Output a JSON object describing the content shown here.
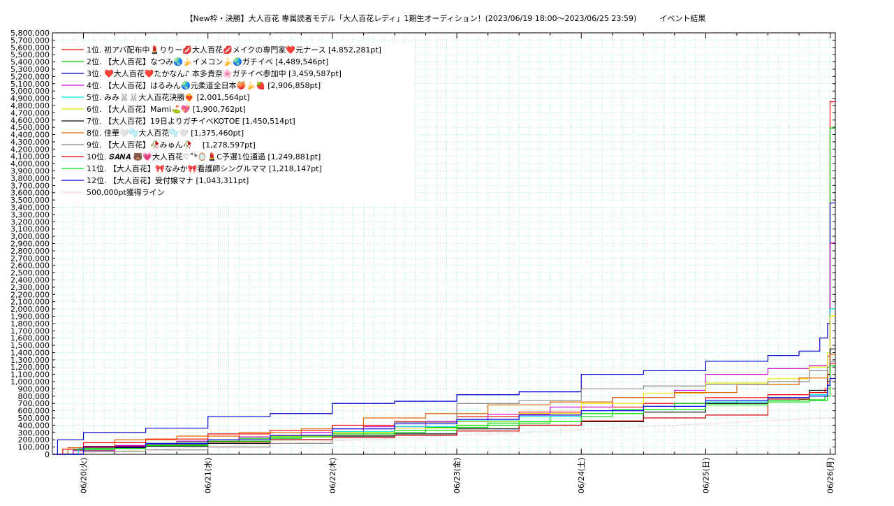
{
  "chart_data": {
    "type": "line",
    "title": "【New枠・決勝】大人百花 専属読者モデル「大人百花レディ」1期生オーディション！(2023/06/19 18:00〜2023/06/25 23:59)　　　イベント結果",
    "xlabel": "",
    "ylabel": "",
    "x_ticks": [
      "06/20(火)",
      "06/21(水)",
      "06/22(木)",
      "06/23(金)",
      "06/24(土)",
      "06/25(日)",
      "06/26(月)"
    ],
    "y_ticks": [
      "0",
      "100,000",
      "200,000",
      "300,000",
      "400,000",
      "500,000",
      "600,000",
      "700,000",
      "800,000",
      "900,000",
      "1,000,000",
      "1,100,000",
      "1,200,000",
      "1,300,000",
      "1,400,000",
      "1,500,000",
      "1,600,000",
      "1,700,000",
      "1,800,000",
      "1,900,000",
      "2,000,000",
      "2,100,000",
      "2,200,000",
      "2,300,000",
      "2,400,000",
      "2,500,000",
      "2,600,000",
      "2,700,000",
      "2,800,000",
      "2,900,000",
      "3,000,000",
      "3,100,000",
      "3,200,000",
      "3,300,000",
      "3,400,000",
      "3,500,000",
      "3,600,000",
      "3,700,000",
      "3,800,000",
      "3,900,000",
      "4,000,000",
      "4,100,000",
      "4,200,000",
      "4,300,000",
      "4,400,000",
      "4,500,000",
      "4,600,000",
      "4,700,000",
      "4,800,000",
      "4,900,000",
      "5,000,000",
      "5,100,000",
      "5,200,000",
      "5,300,000",
      "5,400,000",
      "5,500,000",
      "5,600,000",
      "5,700,000",
      "5,800,000"
    ],
    "x_range": [
      "2023/06/19 18:00",
      "2023/06/26 01:00"
    ],
    "ylim": [
      0,
      5800000
    ],
    "grid": true,
    "legend_position": "top-left",
    "series": [
      {
        "name": " 1位. 初アバ配布中💄りりー💋大人百花💋メイクの専門家❤️元ナース [4,852,281pt]",
        "color": "#ff0000",
        "points": [
          [
            "2023/06/19 18:00",
            0
          ],
          [
            "2023/06/19 20:00",
            70000
          ],
          [
            "2023/06/20 00:00",
            160000
          ],
          [
            "2023/06/20 12:00",
            210000
          ],
          [
            "2023/06/21 00:00",
            280000
          ],
          [
            "2023/06/21 12:00",
            330000
          ],
          [
            "2023/06/22 00:00",
            400000
          ],
          [
            "2023/06/22 12:00",
            450000
          ],
          [
            "2023/06/23 00:00",
            520000
          ],
          [
            "2023/06/23 12:00",
            580000
          ],
          [
            "2023/06/24 00:00",
            650000
          ],
          [
            "2023/06/24 12:00",
            700000
          ],
          [
            "2023/06/25 00:00",
            780000
          ],
          [
            "2023/06/25 12:00",
            820000
          ],
          [
            "2023/06/25 20:00",
            850000
          ],
          [
            "2023/06/25 23:00",
            900000
          ],
          [
            "2023/06/25 23:59",
            4852281
          ],
          [
            "2023/06/26 01:00",
            4852281
          ]
        ]
      },
      {
        "name": " 2位. 【大人百花】なつみ🌏🍌イメコン🍌🌏ガチイベ [4,489,546pt]",
        "color": "#00cc00",
        "points": [
          [
            "2023/06/19 18:00",
            0
          ],
          [
            "2023/06/19 22:00",
            60000
          ],
          [
            "2023/06/20 06:00",
            120000
          ],
          [
            "2023/06/20 18:00",
            170000
          ],
          [
            "2023/06/21 06:00",
            220000
          ],
          [
            "2023/06/21 18:00",
            260000
          ],
          [
            "2023/06/22 06:00",
            300000
          ],
          [
            "2023/06/22 18:00",
            370000
          ],
          [
            "2023/06/23 06:00",
            430000
          ],
          [
            "2023/06/23 18:00",
            520000
          ],
          [
            "2023/06/24 06:00",
            620000
          ],
          [
            "2023/06/24 18:00",
            700000
          ],
          [
            "2023/06/25 06:00",
            740000
          ],
          [
            "2023/06/25 18:00",
            750000
          ],
          [
            "2023/06/25 23:00",
            800000
          ],
          [
            "2023/06/25 23:59",
            4489546
          ],
          [
            "2023/06/26 01:00",
            4489546
          ]
        ]
      },
      {
        "name": " 3位. ❤️大人百花❤️たかなん♪ 本多貴奈🌸ガチイベ参加中 [3,459,587pt]",
        "color": "#0000cc",
        "points": [
          [
            "2023/06/19 18:00",
            0
          ],
          [
            "2023/06/19 19:00",
            200000
          ],
          [
            "2023/06/20 00:00",
            300000
          ],
          [
            "2023/06/20 12:00",
            360000
          ],
          [
            "2023/06/21 00:00",
            520000
          ],
          [
            "2023/06/21 12:00",
            560000
          ],
          [
            "2023/06/22 00:00",
            700000
          ],
          [
            "2023/06/22 12:00",
            730000
          ],
          [
            "2023/06/23 00:00",
            820000
          ],
          [
            "2023/06/23 12:00",
            860000
          ],
          [
            "2023/06/24 00:00",
            1100000
          ],
          [
            "2023/06/24 12:00",
            1150000
          ],
          [
            "2023/06/25 00:00",
            1280000
          ],
          [
            "2023/06/25 12:00",
            1360000
          ],
          [
            "2023/06/25 18:00",
            1420000
          ],
          [
            "2023/06/25 22:00",
            1600000
          ],
          [
            "2023/06/25 23:30",
            1800000
          ],
          [
            "2023/06/25 23:59",
            3459587
          ],
          [
            "2023/06/26 01:00",
            3459587
          ]
        ]
      },
      {
        "name": " 4位. 【大人百花】はるみん🌏元柔道全日本🍑🍌🍓 [2,906,858pt]",
        "color": "#cc00cc",
        "points": [
          [
            "2023/06/19 18:00",
            0
          ],
          [
            "2023/06/19 22:00",
            50000
          ],
          [
            "2023/06/20 06:00",
            120000
          ],
          [
            "2023/06/20 18:00",
            180000
          ],
          [
            "2023/06/21 06:00",
            240000
          ],
          [
            "2023/06/21 18:00",
            300000
          ],
          [
            "2023/06/22 06:00",
            380000
          ],
          [
            "2023/06/22 18:00",
            450000
          ],
          [
            "2023/06/23 06:00",
            550000
          ],
          [
            "2023/06/23 18:00",
            650000
          ],
          [
            "2023/06/24 06:00",
            780000
          ],
          [
            "2023/06/24 18:00",
            880000
          ],
          [
            "2023/06/25 00:00",
            1100000
          ],
          [
            "2023/06/25 12:00",
            1180000
          ],
          [
            "2023/06/25 20:00",
            1220000
          ],
          [
            "2023/06/25 23:30",
            1350000
          ],
          [
            "2023/06/25 23:59",
            2906858
          ],
          [
            "2023/06/26 01:00",
            2906858
          ]
        ]
      },
      {
        "name": " 5位. みみ🐰🐰大人百花決勝❤️‍🔥 [2,001,564pt]",
        "color": "#00e0e0",
        "points": [
          [
            "2023/06/19 18:00",
            0
          ],
          [
            "2023/06/19 23:00",
            80000
          ],
          [
            "2023/06/20 12:00",
            140000
          ],
          [
            "2023/06/21 00:00",
            200000
          ],
          [
            "2023/06/21 12:00",
            250000
          ],
          [
            "2023/06/22 00:00",
            310000
          ],
          [
            "2023/06/22 12:00",
            380000
          ],
          [
            "2023/06/23 00:00",
            460000
          ],
          [
            "2023/06/23 12:00",
            520000
          ],
          [
            "2023/06/24 00:00",
            600000
          ],
          [
            "2023/06/24 12:00",
            660000
          ],
          [
            "2023/06/25 00:00",
            720000
          ],
          [
            "2023/06/25 12:00",
            780000
          ],
          [
            "2023/06/25 20:00",
            820000
          ],
          [
            "2023/06/25 23:30",
            1200000
          ],
          [
            "2023/06/25 23:59",
            2001564
          ],
          [
            "2023/06/26 01:00",
            2001564
          ]
        ]
      },
      {
        "name": " 6位. 【大人百花】Mami⛳💖 [1,900,762pt]",
        "color": "#e6e600",
        "points": [
          [
            "2023/06/19 18:00",
            0
          ],
          [
            "2023/06/20 00:00",
            90000
          ],
          [
            "2023/06/20 12:00",
            150000
          ],
          [
            "2023/06/21 00:00",
            200000
          ],
          [
            "2023/06/21 12:00",
            250000
          ],
          [
            "2023/06/22 00:00",
            300000
          ],
          [
            "2023/06/22 12:00",
            360000
          ],
          [
            "2023/06/23 00:00",
            450000
          ],
          [
            "2023/06/23 12:00",
            560000
          ],
          [
            "2023/06/24 00:00",
            700000
          ],
          [
            "2023/06/24 12:00",
            840000
          ],
          [
            "2023/06/25 00:00",
            980000
          ],
          [
            "2023/06/25 12:00",
            1040000
          ],
          [
            "2023/06/25 20:00",
            1200000
          ],
          [
            "2023/06/25 23:30",
            1400000
          ],
          [
            "2023/06/25 23:59",
            1900762
          ],
          [
            "2023/06/26 01:00",
            1900762
          ]
        ]
      },
      {
        "name": " 7位. 【大人百花】19日よりガチイベKOTOE [1,450,514pt]",
        "color": "#000000",
        "points": [
          [
            "2023/06/19 18:00",
            0
          ],
          [
            "2023/06/20 00:00",
            90000
          ],
          [
            "2023/06/20 12:00",
            110000
          ],
          [
            "2023/06/21 00:00",
            150000
          ],
          [
            "2023/06/21 12:00",
            200000
          ],
          [
            "2023/06/22 00:00",
            250000
          ],
          [
            "2023/06/22 12:00",
            280000
          ],
          [
            "2023/06/23 00:00",
            350000
          ],
          [
            "2023/06/23 12:00",
            400000
          ],
          [
            "2023/06/24 00:00",
            450000
          ],
          [
            "2023/06/24 12:00",
            580000
          ],
          [
            "2023/06/25 00:00",
            700000
          ],
          [
            "2023/06/25 12:00",
            780000
          ],
          [
            "2023/06/25 20:00",
            880000
          ],
          [
            "2023/06/25 23:30",
            1100000
          ],
          [
            "2023/06/25 23:59",
            1450514
          ],
          [
            "2023/06/26 01:00",
            1450514
          ]
        ]
      },
      {
        "name": " 8位. 佳華🤍🫧大人百花🫧🤍 [1,375,460pt]",
        "color": "#e06000",
        "points": [
          [
            "2023/06/19 18:00",
            0
          ],
          [
            "2023/06/19 21:00",
            90000
          ],
          [
            "2023/06/20 06:00",
            200000
          ],
          [
            "2023/06/20 18:00",
            250000
          ],
          [
            "2023/06/21 06:00",
            300000
          ],
          [
            "2023/06/21 18:00",
            350000
          ],
          [
            "2023/06/22 06:00",
            500000
          ],
          [
            "2023/06/22 18:00",
            560000
          ],
          [
            "2023/06/23 06:00",
            680000
          ],
          [
            "2023/06/23 18:00",
            720000
          ],
          [
            "2023/06/24 06:00",
            780000
          ],
          [
            "2023/06/24 18:00",
            850000
          ],
          [
            "2023/06/25 06:00",
            960000
          ],
          [
            "2023/06/25 18:00",
            1050000
          ],
          [
            "2023/06/25 23:30",
            1200000
          ],
          [
            "2023/06/25 23:59",
            1375460
          ],
          [
            "2023/06/26 01:00",
            1375460
          ]
        ]
      },
      {
        "name": " 9位. 【大人百花】🥀みゅん🥀　 [1,278,597pt]",
        "color": "#888888",
        "points": [
          [
            "2023/06/19 18:00",
            0
          ],
          [
            "2023/06/20 00:00",
            40000
          ],
          [
            "2023/06/20 12:00",
            60000
          ],
          [
            "2023/06/21 00:00",
            100000
          ],
          [
            "2023/06/21 12:00",
            150000
          ],
          [
            "2023/06/22 00:00",
            260000
          ],
          [
            "2023/06/22 12:00",
            440000
          ],
          [
            "2023/06/23 00:00",
            700000
          ],
          [
            "2023/06/23 12:00",
            740000
          ],
          [
            "2023/06/24 00:00",
            900000
          ],
          [
            "2023/06/24 12:00",
            940000
          ],
          [
            "2023/06/25 00:00",
            960000
          ],
          [
            "2023/06/25 12:00",
            1000000
          ],
          [
            "2023/06/25 20:00",
            1150000
          ],
          [
            "2023/06/25 23:30",
            1200000
          ],
          [
            "2023/06/25 23:59",
            1278597
          ],
          [
            "2023/06/26 01:00",
            1278597
          ]
        ]
      },
      {
        "name": "10位. 𝑺𝑨𝑵𝑨 🐻💗大人百花♡˚*🪞💄C予選1位通過 [1,249,881pt]",
        "color": "#cc0000",
        "points": [
          [
            "2023/06/19 18:00",
            0
          ],
          [
            "2023/06/20 00:00",
            110000
          ],
          [
            "2023/06/20 12:00",
            130000
          ],
          [
            "2023/06/21 00:00",
            170000
          ],
          [
            "2023/06/21 12:00",
            200000
          ],
          [
            "2023/06/22 00:00",
            230000
          ],
          [
            "2023/06/22 12:00",
            260000
          ],
          [
            "2023/06/23 00:00",
            320000
          ],
          [
            "2023/06/23 12:00",
            400000
          ],
          [
            "2023/06/24 00:00",
            460000
          ],
          [
            "2023/06/24 12:00",
            500000
          ],
          [
            "2023/06/25 00:00",
            540000
          ],
          [
            "2023/06/25 12:00",
            760000
          ],
          [
            "2023/06/25 20:00",
            850000
          ],
          [
            "2023/06/25 23:30",
            1000000
          ],
          [
            "2023/06/25 23:59",
            1249881
          ],
          [
            "2023/06/26 01:00",
            1249881
          ]
        ]
      },
      {
        "name": "11位. 【大人百花】🎀なみか🎀看護師シングルママ [1,218,147pt]",
        "color": "#00e000",
        "points": [
          [
            "2023/06/19 18:00",
            0
          ],
          [
            "2023/06/20 00:00",
            80000
          ],
          [
            "2023/06/20 12:00",
            120000
          ],
          [
            "2023/06/21 00:00",
            180000
          ],
          [
            "2023/06/21 12:00",
            240000
          ],
          [
            "2023/06/22 00:00",
            280000
          ],
          [
            "2023/06/22 12:00",
            330000
          ],
          [
            "2023/06/23 00:00",
            400000
          ],
          [
            "2023/06/23 12:00",
            450000
          ],
          [
            "2023/06/24 00:00",
            560000
          ],
          [
            "2023/06/24 12:00",
            620000
          ],
          [
            "2023/06/25 00:00",
            680000
          ],
          [
            "2023/06/25 12:00",
            720000
          ],
          [
            "2023/06/25 20:00",
            740000
          ],
          [
            "2023/06/25 23:30",
            900000
          ],
          [
            "2023/06/25 23:59",
            1218147
          ],
          [
            "2023/06/26 01:00",
            1218147
          ]
        ]
      },
      {
        "name": "12位. 【大人百花】受付嬢マナ [1,043,311pt]",
        "color": "#0000ee",
        "points": [
          [
            "2023/06/19 18:00",
            0
          ],
          [
            "2023/06/20 00:00",
            100000
          ],
          [
            "2023/06/20 12:00",
            150000
          ],
          [
            "2023/06/21 00:00",
            200000
          ],
          [
            "2023/06/21 12:00",
            260000
          ],
          [
            "2023/06/22 00:00",
            350000
          ],
          [
            "2023/06/22 12:00",
            420000
          ],
          [
            "2023/06/23 00:00",
            480000
          ],
          [
            "2023/06/23 12:00",
            540000
          ],
          [
            "2023/06/24 00:00",
            600000
          ],
          [
            "2023/06/24 12:00",
            660000
          ],
          [
            "2023/06/25 00:00",
            740000
          ],
          [
            "2023/06/25 12:00",
            780000
          ],
          [
            "2023/06/25 20:00",
            800000
          ],
          [
            "2023/06/25 23:30",
            950000
          ],
          [
            "2023/06/25 23:59",
            1043311
          ],
          [
            "2023/06/26 01:00",
            1043311
          ]
        ]
      }
    ],
    "reference_line": {
      "name": "500,000pt獲得ライン",
      "color": "#ff8080",
      "points": [
        [
          "2023/06/19 18:00",
          0
        ],
        [
          "2023/06/25 23:59",
          500000
        ],
        [
          "2023/06/26 01:00",
          500000
        ]
      ]
    }
  }
}
